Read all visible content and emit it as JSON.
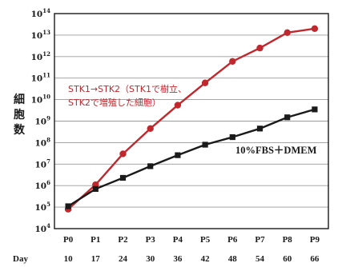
{
  "chart_data": {
    "type": "line",
    "categories": [
      "P0",
      "P1",
      "P2",
      "P3",
      "P4",
      "P5",
      "P6",
      "P7",
      "P8",
      "P9"
    ],
    "x_row_label": "Day",
    "days": [
      "10",
      "17",
      "24",
      "30",
      "36",
      "42",
      "48",
      "54",
      "60",
      "66"
    ],
    "ylabel": "細\n胞\n数",
    "yscale": "log",
    "ylim_exp": [
      4,
      14
    ],
    "ytick_exponents": [
      4,
      5,
      6,
      7,
      8,
      9,
      10,
      11,
      12,
      13,
      14
    ],
    "grid": true,
    "series": [
      {
        "name": "STK1→STK2（STK1で樹立、\nSTK2で増殖した細胞）",
        "color": "#c0282d",
        "marker": "circle",
        "values": [
          80000,
          1100000,
          30000000,
          450000000,
          5500000000,
          60000000000,
          600000000000,
          2500000000000,
          13000000000000,
          20000000000000
        ]
      },
      {
        "name": "10%FBS＋DMEM",
        "color": "#1a1a1a",
        "marker": "square",
        "values": [
          110000,
          700000,
          2300000,
          8000000,
          26000000,
          80000000,
          180000000,
          450000000,
          1500000000,
          3500000000
        ]
      }
    ]
  }
}
